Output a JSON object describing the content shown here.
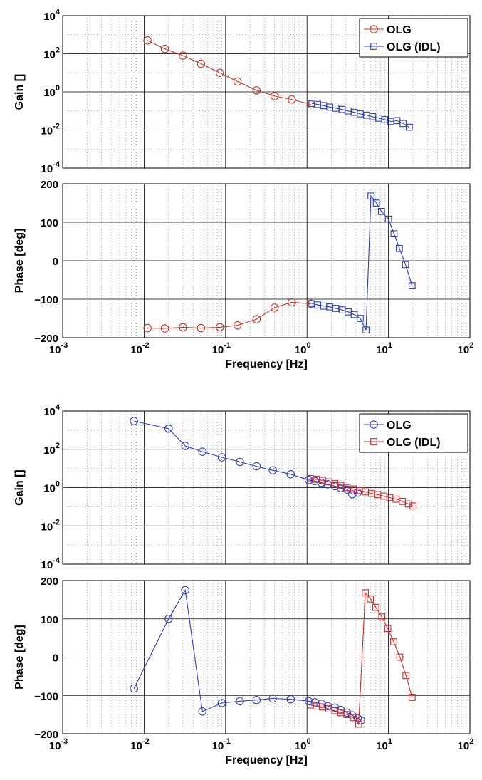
{
  "chart_data": [
    {
      "type": "line",
      "panel": "top-gain",
      "xscale": "log",
      "yscale": "log",
      "xlim": [
        0.001,
        100
      ],
      "ylim": [
        0.0001,
        10000
      ],
      "ylabel": "Gain  []",
      "xlabel": "",
      "x_ticklabels": [],
      "y_ticklabels": [
        {
          "base": "10",
          "exp": "4",
          "value": 10000
        },
        {
          "base": "10",
          "exp": "2",
          "value": 100
        },
        {
          "base": "10",
          "exp": "0",
          "value": 1
        },
        {
          "base": "10",
          "exp": "-2",
          "value": 0.01
        },
        {
          "base": "10",
          "exp": "-4",
          "value": 0.0001
        }
      ],
      "grid": true,
      "legend": "top-right",
      "series": [
        {
          "name": "OLG",
          "color": "#c0392b",
          "marker": "circle",
          "x": [
            0.011,
            0.018,
            0.03,
            0.05,
            0.085,
            0.14,
            0.24,
            0.4,
            0.65,
            1.12
          ],
          "y": [
            500,
            180,
            80,
            30,
            10,
            3.5,
            1.2,
            0.6,
            0.4,
            0.22
          ]
        },
        {
          "name": "OLG (IDL)",
          "color": "#2c3ec0",
          "marker": "square",
          "x": [
            1.15,
            1.35,
            1.6,
            1.9,
            2.25,
            2.7,
            3.2,
            3.8,
            4.5,
            5.4,
            6.4,
            7.6,
            9.0,
            10.7,
            12.7,
            15.1,
            18.0
          ],
          "y": [
            0.25,
            0.22,
            0.19,
            0.16,
            0.14,
            0.12,
            0.1,
            0.085,
            0.07,
            0.06,
            0.05,
            0.042,
            0.035,
            0.028,
            0.031,
            0.022,
            0.014
          ]
        }
      ]
    },
    {
      "type": "line",
      "panel": "top-phase",
      "xscale": "log",
      "yscale": "linear",
      "xlim": [
        0.001,
        100
      ],
      "ylim": [
        -200,
        200
      ],
      "ylabel": "Phase  [deg]",
      "xlabel": "Frequency  [Hz]",
      "x_ticklabels": [
        {
          "base": "10",
          "exp": "-3",
          "value": 0.001
        },
        {
          "base": "10",
          "exp": "-2",
          "value": 0.01
        },
        {
          "base": "10",
          "exp": "-1",
          "value": 0.1
        },
        {
          "base": "10",
          "exp": "0",
          "value": 1
        },
        {
          "base": "10",
          "exp": "1",
          "value": 10
        },
        {
          "base": "10",
          "exp": "2",
          "value": 100
        }
      ],
      "y_ticklabels": [
        {
          "text": "200",
          "value": 200
        },
        {
          "text": "100",
          "value": 100
        },
        {
          "text": "0",
          "value": 0
        },
        {
          "text": "−100",
          "value": -100
        },
        {
          "text": "−200",
          "value": -200
        }
      ],
      "grid": true,
      "series": [
        {
          "name": "OLG",
          "color": "#c0392b",
          "marker": "circle",
          "x": [
            0.011,
            0.018,
            0.03,
            0.05,
            0.085,
            0.14,
            0.24,
            0.4,
            0.65,
            1.12
          ],
          "y": [
            -175,
            -176,
            -173,
            -175,
            -173,
            -168,
            -152,
            -122,
            -108,
            -112
          ]
        },
        {
          "name": "OLG (IDL)",
          "color": "#2c3ec0",
          "marker": "square",
          "x": [
            1.15,
            1.35,
            1.6,
            1.9,
            2.25,
            2.7,
            3.2,
            3.8,
            4.5,
            5.3,
            6.1,
            7.1,
            8.2,
            10.0,
            11.7,
            13.6,
            16.2,
            19.5
          ],
          "y": [
            -112,
            -115,
            -118,
            -120,
            -124,
            -128,
            -133,
            -140,
            -150,
            -180,
            168,
            150,
            128,
            108,
            70,
            32,
            -10,
            -65
          ]
        }
      ]
    },
    {
      "type": "line",
      "panel": "bottom-gain",
      "xscale": "log",
      "yscale": "log",
      "xlim": [
        0.001,
        100
      ],
      "ylim": [
        0.0001,
        10000
      ],
      "ylabel": "Gain  []",
      "xlabel": "",
      "x_ticklabels": [],
      "y_ticklabels": [
        {
          "base": "10",
          "exp": "4",
          "value": 10000
        },
        {
          "base": "10",
          "exp": "2",
          "value": 100
        },
        {
          "base": "10",
          "exp": "0",
          "value": 1
        },
        {
          "base": "10",
          "exp": "-2",
          "value": 0.01
        },
        {
          "base": "10",
          "exp": "-4",
          "value": 0.0001
        }
      ],
      "grid": true,
      "legend": "top-right",
      "series": [
        {
          "name": "OLG",
          "color": "#2c3ec0",
          "marker": "circle",
          "x": [
            0.0075,
            0.02,
            0.032,
            0.052,
            0.09,
            0.15,
            0.24,
            0.38,
            0.63,
            1.05,
            1.25,
            1.5,
            1.8,
            2.2,
            2.6,
            3.1,
            3.6,
            4.2
          ],
          "y": [
            3000,
            1200,
            150,
            75,
            38,
            22,
            13,
            8,
            5,
            2.5,
            2.2,
            1.8,
            1.5,
            1.2,
            0.95,
            0.8,
            0.45,
            0.55
          ]
        },
        {
          "name": "OLG (IDL)",
          "color": "#cc2a2a",
          "marker": "square",
          "x": [
            1.1,
            1.3,
            1.55,
            1.85,
            2.2,
            2.6,
            3.1,
            3.7,
            4.4,
            5.2,
            6.2,
            7.4,
            8.8,
            10.4,
            12.4,
            14.8,
            17.6,
            20.0
          ],
          "y": [
            3.0,
            2.7,
            2.4,
            2.0,
            1.6,
            1.3,
            1.0,
            0.85,
            0.7,
            0.6,
            0.5,
            0.43,
            0.36,
            0.3,
            0.25,
            0.19,
            0.14,
            0.11
          ]
        }
      ]
    },
    {
      "type": "line",
      "panel": "bottom-phase",
      "xscale": "log",
      "yscale": "linear",
      "xlim": [
        0.001,
        100
      ],
      "ylim": [
        -200,
        200
      ],
      "ylabel": "Phase  [deg]",
      "xlabel": "Frequency  [Hz]",
      "x_ticklabels": [
        {
          "base": "10",
          "exp": "-3",
          "value": 0.001
        },
        {
          "base": "10",
          "exp": "-2",
          "value": 0.01
        },
        {
          "base": "10",
          "exp": "-1",
          "value": 0.1
        },
        {
          "base": "10",
          "exp": "0",
          "value": 1
        },
        {
          "base": "10",
          "exp": "1",
          "value": 10
        },
        {
          "base": "10",
          "exp": "2",
          "value": 100
        }
      ],
      "y_ticklabels": [
        {
          "text": "200",
          "value": 200
        },
        {
          "text": "100",
          "value": 100
        },
        {
          "text": "0",
          "value": 0
        },
        {
          "text": "−100",
          "value": -100
        },
        {
          "text": "−200",
          "value": -200
        }
      ],
      "grid": true,
      "series": [
        {
          "name": "OLG",
          "color": "#2c3ec0",
          "marker": "circle",
          "x": [
            0.0075,
            0.02,
            0.032,
            0.052,
            0.09,
            0.15,
            0.24,
            0.38,
            0.63,
            1.05,
            1.25,
            1.5,
            1.8,
            2.2,
            2.6,
            3.1,
            3.6,
            4.2,
            4.6
          ],
          "y": [
            -82,
            100,
            175,
            -142,
            -120,
            -115,
            -112,
            -108,
            -110,
            -115,
            -118,
            -122,
            -128,
            -132,
            -138,
            -145,
            -152,
            -160,
            -165
          ]
        },
        {
          "name": "OLG (IDL)",
          "color": "#cc2a2a",
          "marker": "square",
          "x": [
            1.1,
            1.3,
            1.55,
            1.85,
            2.2,
            2.6,
            3.1,
            3.7,
            4.3,
            5.2,
            6.0,
            7.0,
            8.3,
            9.8,
            11.6,
            13.8,
            16.4,
            19.5
          ],
          "y": [
            -125,
            -128,
            -130,
            -135,
            -140,
            -145,
            -150,
            -158,
            -175,
            168,
            152,
            130,
            105,
            75,
            40,
            0,
            -48,
            -105
          ]
        }
      ]
    }
  ]
}
